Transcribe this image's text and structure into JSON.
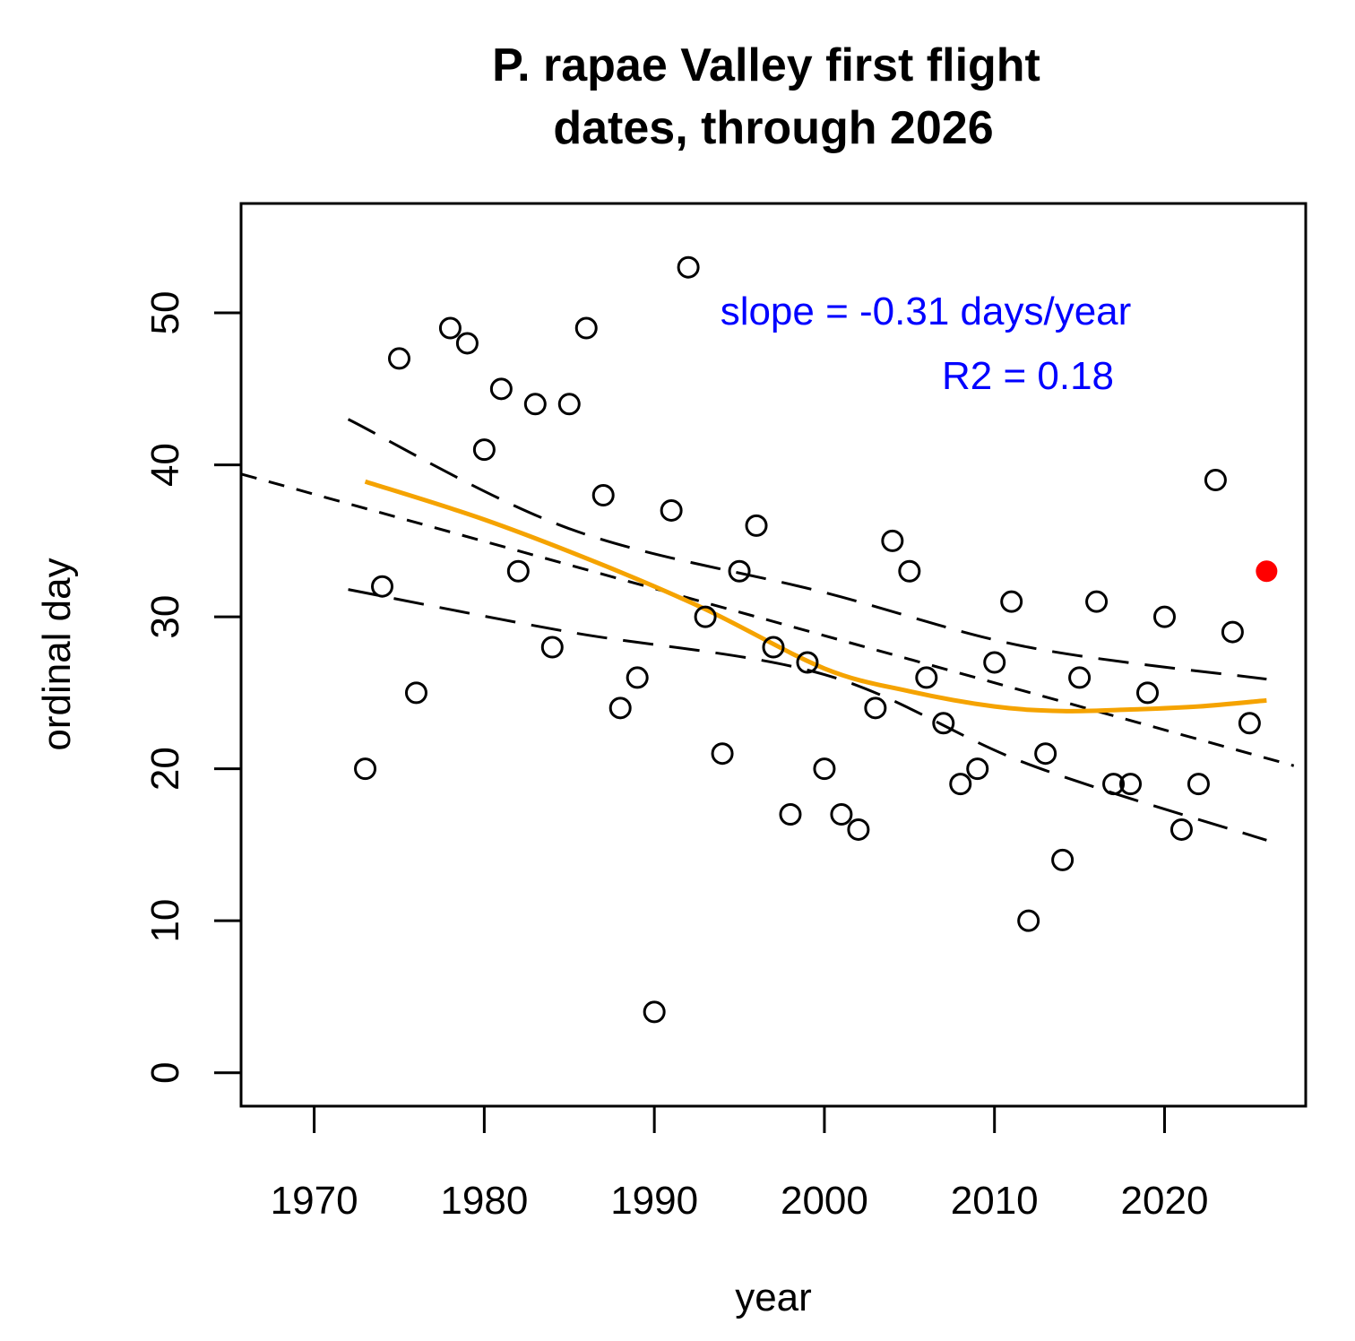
{
  "chart_data": {
    "type": "scatter",
    "title": [
      "P. rapae Valley first flight",
      "dates, through 2026"
    ],
    "xlabel": "year",
    "ylabel": "ordinal day",
    "xlim": [
      1965.7,
      2028.3
    ],
    "ylim": [
      -2.2,
      57.2
    ],
    "xticks": [
      1970,
      1980,
      1990,
      2000,
      2010,
      2020
    ],
    "yticks": [
      0,
      10,
      20,
      30,
      40,
      50
    ],
    "grid": false,
    "points": {
      "x": [
        1973,
        1974,
        1975,
        1976,
        1978,
        1979,
        1980,
        1981,
        1982,
        1983,
        1984,
        1985,
        1986,
        1987,
        1988,
        1989,
        1990,
        1991,
        1992,
        1993,
        1994,
        1995,
        1996,
        1997,
        1998,
        1999,
        2000,
        2001,
        2002,
        2003,
        2004,
        2005,
        2006,
        2007,
        2008,
        2009,
        2010,
        2011,
        2012,
        2013,
        2014,
        2015,
        2016,
        2017,
        2018,
        2019,
        2020,
        2021,
        2022,
        2023,
        2024,
        2025
      ],
      "y": [
        20,
        32,
        47,
        25,
        49,
        48,
        41,
        45,
        33,
        44,
        28,
        44,
        49,
        38,
        24,
        26,
        4,
        37,
        53,
        30,
        21,
        33,
        36,
        28,
        17,
        27,
        20,
        17,
        16,
        24,
        35,
        33,
        26,
        23,
        19,
        20,
        27,
        31,
        10,
        21,
        14,
        26,
        31,
        19,
        19,
        25,
        30,
        16,
        19,
        39,
        29,
        23
      ]
    },
    "highlight_point": {
      "x": 2026,
      "y": 33,
      "color": "#ff0000"
    },
    "regression_line": {
      "x": [
        1965.7,
        2027.6
      ],
      "y": [
        39.4,
        20.2
      ],
      "style": "dashed",
      "color": "#000000"
    },
    "confidence_upper": {
      "x": [
        1972,
        1985,
        2000,
        2012,
        2026
      ],
      "y": [
        43.0,
        35.8,
        31.6,
        28.0,
        25.9
      ],
      "style": "dashed",
      "color": "#000000"
    },
    "confidence_lower": {
      "x": [
        1972,
        1985,
        2000,
        2012,
        2026
      ],
      "y": [
        31.8,
        29.0,
        26.2,
        20.3,
        15.3
      ],
      "style": "dashed",
      "color": "#000000"
    },
    "loess": {
      "x": [
        1973,
        1980,
        1987,
        1993,
        2000,
        2005,
        2010,
        2014,
        2018,
        2022,
        2026
      ],
      "y": [
        38.9,
        36.4,
        33.4,
        30.5,
        26.6,
        25.1,
        24.1,
        23.8,
        23.9,
        24.1,
        24.5
      ],
      "color": "#f5a300"
    },
    "annotations": {
      "slope": "slope = -0.31 days/year",
      "r2": "R2 = 0.18",
      "color": "#0000ff"
    }
  }
}
